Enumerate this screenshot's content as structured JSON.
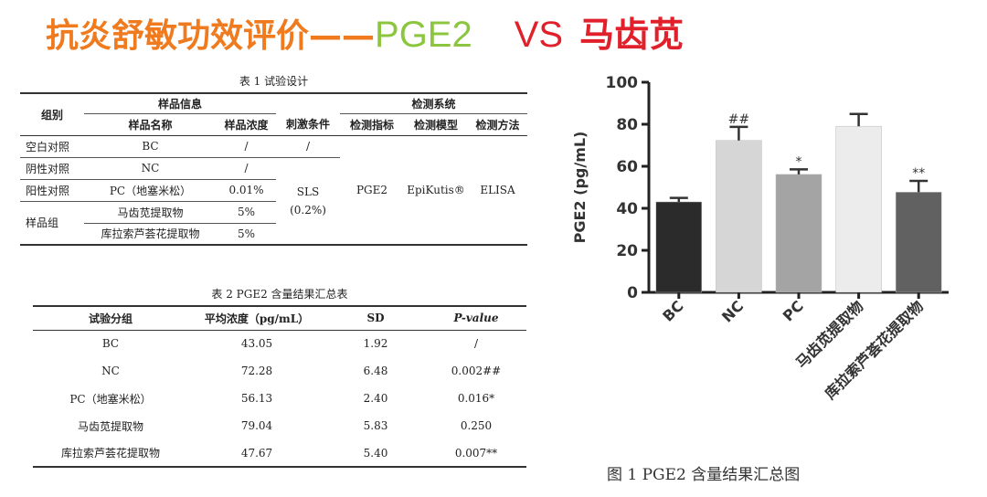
{
  "title": {
    "part1": "抗炎舒敏功效评价——",
    "part2": "PGE2",
    "part3": "VS",
    "part4": "马齿苋"
  },
  "table1": {
    "caption": "表 1 试验设计",
    "group_header": "组别",
    "sample_info_header": "样品信息",
    "detection_header": "检测系统",
    "sample_name_header": "样品名称",
    "sample_conc_header": "样品浓度",
    "stim_header": "刺激条件",
    "indicator_header": "检测指标",
    "model_header": "检测模型",
    "method_header": "检测方法",
    "rows": [
      {
        "group": "空白对照",
        "name": "BC",
        "conc": "/"
      },
      {
        "group": "阴性对照",
        "name": "NC",
        "conc": "/"
      },
      {
        "group": "阳性对照",
        "name": "PC（地塞米松）",
        "conc": "0.01%"
      },
      {
        "group": "样品组",
        "name": "马齿苋提取物",
        "conc": "5%"
      },
      {
        "group": "",
        "name": "库拉索芦荟花提取物",
        "conc": "5%"
      }
    ],
    "stim_bc": "/",
    "stim_sls": "SLS",
    "stim_sls_conc": "(0.2%)",
    "indicator": "PGE2",
    "model": "EpiKutis®",
    "method": "ELISA"
  },
  "table2": {
    "caption": "表 2 PGE2 含量结果汇总表",
    "headers": [
      "试验分组",
      "平均浓度（pg/mL）",
      "SD",
      "P-value"
    ],
    "rows": [
      [
        "BC",
        "43.05",
        "1.92",
        "/"
      ],
      [
        "NC",
        "72.28",
        "6.48",
        "0.002##"
      ],
      [
        "PC（地塞米松）",
        "56.13",
        "2.40",
        "0.016*"
      ],
      [
        "马齿苋提取物",
        "79.04",
        "5.83",
        "0.250"
      ],
      [
        "库拉索芦荟花提取物",
        "47.67",
        "5.40",
        "0.007**"
      ]
    ]
  },
  "chart_data": {
    "type": "bar",
    "categories": [
      "BC",
      "NC",
      "PC",
      "马齿苋提取物",
      "库拉索芦荟花提取物"
    ],
    "values": [
      43.05,
      72.28,
      56.13,
      79.04,
      47.67
    ],
    "errors": [
      1.92,
      6.48,
      2.4,
      5.83,
      5.4
    ],
    "annotations": [
      "",
      "##",
      "*",
      "",
      "**"
    ],
    "bar_colors": [
      "#2b2b2b",
      "#d6d6d6",
      "#a4a4a4",
      "#ececec",
      "#616161"
    ],
    "ylabel": "PGE2 (pg/mL)",
    "ylim": [
      0,
      100
    ],
    "yticks": [
      0,
      20,
      40,
      60,
      80,
      100
    ],
    "caption": "图 1 PGE2 含量结果汇总图"
  }
}
